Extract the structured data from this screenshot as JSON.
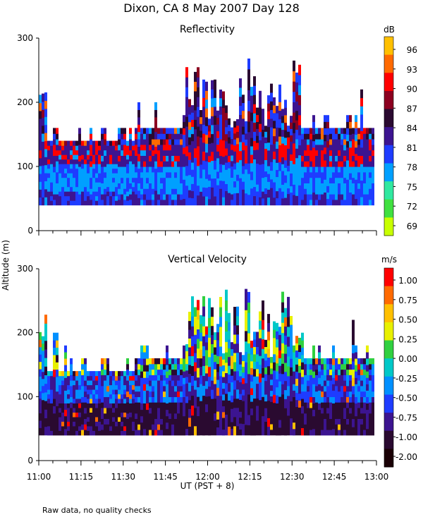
{
  "chart_data": [
    {
      "type": "heatmap",
      "figure_title": "Dixon, CA  8 May 2007  Day 128",
      "title": "Reflectivity",
      "ylabel": "Altitude (m)",
      "ylim": [
        0,
        300
      ],
      "yticks": [
        "0",
        "100",
        "200",
        "300"
      ],
      "xlim_minutes_utc": [
        660,
        780
      ],
      "colorbar_unit": "dB",
      "colorbar_labels": [
        "96",
        "93",
        "90",
        "87",
        "84",
        "81",
        "78",
        "75",
        "72",
        "69"
      ],
      "colorbar_colors": [
        "#ffc000",
        "#ff6a00",
        "#ff0000",
        "#8c0020",
        "#2a0a30",
        "#3c1490",
        "#1e3cff",
        "#00a0ff",
        "#30e8a0",
        "#40e040",
        "#c8ff00"
      ],
      "data_region_m": [
        40,
        300
      ]
    },
    {
      "type": "heatmap",
      "title": "Vertical Velocity",
      "ylabel": "Altitude (m)",
      "ylim": [
        0,
        300
      ],
      "yticks": [
        "0",
        "100",
        "200",
        "300"
      ],
      "xlim_minutes_utc": [
        660,
        780
      ],
      "xticks": [
        "11:00",
        "11:15",
        "11:30",
        "11:45",
        "12:00",
        "12:15",
        "12:30",
        "12:45",
        "13:00"
      ],
      "xlabel": "UT  (PST + 8)",
      "colorbar_unit": "m/s",
      "colorbar_labels": [
        "1.00",
        "0.75",
        "0.50",
        "0.25",
        "0.00",
        "-0.25",
        "-0.50",
        "-0.75",
        "-1.00",
        "-2.00"
      ],
      "colorbar_colors": [
        "#ff0000",
        "#ff6a00",
        "#ffc000",
        "#e8f000",
        "#30d040",
        "#00c8c8",
        "#0090ff",
        "#1e3cff",
        "#3c1490",
        "#2a0a30",
        "#1a0005"
      ],
      "data_region_m": [
        40,
        300
      ]
    }
  ],
  "footnote": "Raw data, no quality checks"
}
